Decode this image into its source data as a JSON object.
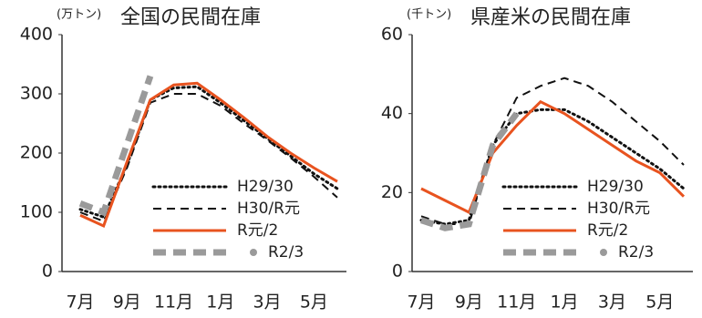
{
  "chart_data": [
    {
      "type": "line",
      "unit": "(万トン)",
      "title": "全国の民間在庫",
      "categories": [
        "7月",
        null,
        "9月",
        null,
        "11月",
        null,
        "1月",
        null,
        "3月",
        null,
        "5月",
        null
      ],
      "ylim": [
        0,
        400
      ],
      "yticks": [
        0,
        100,
        200,
        300,
        400
      ],
      "series": [
        {
          "name": "H29/30",
          "color": "#111111",
          "dash": "dotted",
          "values": [
            105,
            92,
            180,
            290,
            310,
            312,
            285,
            255,
            225,
            195,
            165,
            140
          ]
        },
        {
          "name": "H30/R元",
          "color": "#111111",
          "dash": "dashed",
          "values": [
            100,
            85,
            175,
            285,
            300,
            300,
            280,
            250,
            222,
            192,
            160,
            125
          ]
        },
        {
          "name": "R元/2",
          "color": "#e8531f",
          "dash": "solid",
          "values": [
            95,
            77,
            185,
            290,
            315,
            318,
            290,
            260,
            228,
            200,
            175,
            152
          ]
        },
        {
          "name": "R2/3",
          "color": "#9a9a9a",
          "dash": "thick-dashed",
          "values": [
            115,
            100,
            215,
            330,
            null,
            null,
            null,
            null,
            null,
            null,
            null,
            null
          ]
        }
      ]
    },
    {
      "type": "line",
      "unit": "(千トン)",
      "title": "県産米の民間在庫",
      "categories": [
        "7月",
        null,
        "9月",
        null,
        "11月",
        null,
        "1月",
        null,
        "3月",
        null,
        "5月",
        null
      ],
      "ylim": [
        0,
        60
      ],
      "yticks": [
        0,
        20,
        40,
        60
      ],
      "series": [
        {
          "name": "H29/30",
          "color": "#111111",
          "dash": "dotted",
          "values": [
            13,
            12,
            13,
            32,
            40,
            41,
            41,
            38,
            34,
            30,
            26,
            21
          ]
        },
        {
          "name": "H30/R元",
          "color": "#111111",
          "dash": "dashed",
          "values": [
            14,
            12,
            12,
            32,
            44,
            47,
            49,
            47,
            43,
            38,
            33,
            27
          ]
        },
        {
          "name": "R元/2",
          "color": "#e8531f",
          "dash": "solid",
          "values": [
            21,
            18,
            15,
            30,
            37,
            43,
            40,
            36,
            32,
            28,
            25,
            19
          ]
        },
        {
          "name": "R2/3",
          "color": "#9a9a9a",
          "dash": "thick-dashed",
          "values": [
            13,
            11,
            12,
            32,
            40,
            null,
            null,
            null,
            null,
            null,
            null,
            null
          ]
        }
      ]
    }
  ]
}
